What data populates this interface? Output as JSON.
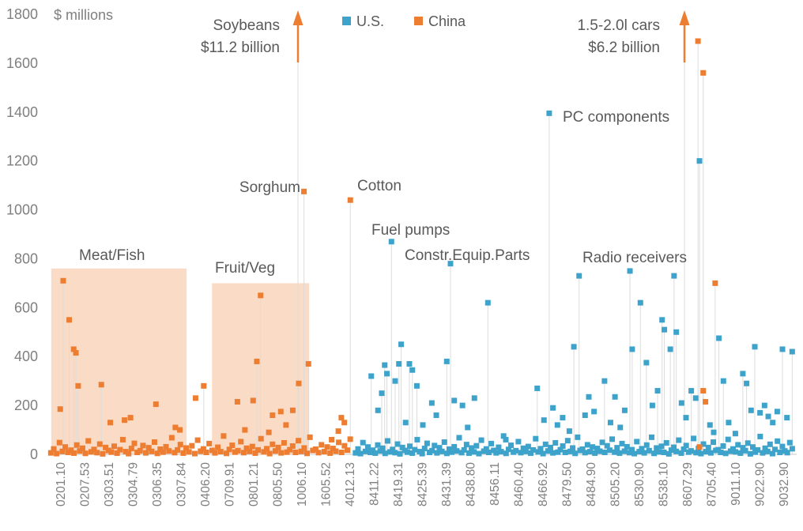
{
  "annotations": {
    "soybeans_line1": "Soybeans",
    "soybeans_line2": "$11.2 billion",
    "cars_line1": "1.5-2.0l cars",
    "cars_line2": "$6.2 billion",
    "sorghum": "Sorghum",
    "cotton": "Cotton",
    "fuel_pumps": "Fuel pumps",
    "constr_equip": "Constr.Equip.Parts",
    "pc_components": "PC components",
    "radio_receivers": "Radio receivers",
    "meat_fish": "Meat/Fish",
    "fruit_veg": "Fruit/Veg"
  },
  "chart_data": {
    "type": "scatter",
    "title": "",
    "ylabel": "$ millions",
    "ylim": [
      0,
      1800
    ],
    "ytick_step": 200,
    "legend_position": "top-center",
    "grid": false,
    "x_tick_labels": [
      "0201.10",
      "0207.53",
      "0303.51",
      "0304.79",
      "0306.35",
      "0307.84",
      "0406.20",
      "0709.91",
      "0801.21",
      "0805.50",
      "1006.10",
      "1605.52",
      "4012.13",
      "8411.22",
      "8419.31",
      "8425.39",
      "8431.39",
      "8438.80",
      "8456.11",
      "8460.40",
      "8466.92",
      "8479.50",
      "8484.90",
      "8505.20",
      "8530.90",
      "8538.10",
      "8607.29",
      "8705.40",
      "9011.10",
      "9022.90",
      "9032.90"
    ],
    "colors": {
      "us": "#3DA3CB",
      "china": "#ED7D31",
      "stem": "#DCDCDC",
      "region_fill": "rgba(237,125,49,0.28)",
      "tick_text": "#7F7F7F",
      "annotation_text": "#595959"
    },
    "regions": [
      {
        "label": "Meat/Fish",
        "x0": 0.3,
        "x1": 18.4,
        "ymax": 760
      },
      {
        "label": "Fruit/Veg",
        "x0": 21.8,
        "x1": 34.8,
        "ymax": 700
      }
    ],
    "offscale": [
      {
        "series": "China",
        "label": "Soybeans",
        "value_label": "$11.2 billion",
        "x": 33.3
      },
      {
        "series": "China",
        "label": "1.5-2.0l cars",
        "value_label": "$6.2 billion",
        "x": 85.0
      }
    ],
    "series": [
      {
        "name": "U.S.",
        "color_key": "us",
        "points": [
          [
            43.1,
            320
          ],
          [
            44,
            180
          ],
          [
            44.5,
            250
          ],
          [
            44.9,
            365
          ],
          [
            45.2,
            330
          ],
          [
            45.8,
            870
          ],
          [
            46.3,
            300
          ],
          [
            46.8,
            370
          ],
          [
            47.1,
            450
          ],
          [
            47.7,
            130
          ],
          [
            48.2,
            370
          ],
          [
            48.6,
            345
          ],
          [
            49.2,
            280
          ],
          [
            50,
            120
          ],
          [
            51.2,
            210
          ],
          [
            51.8,
            160
          ],
          [
            53.2,
            380
          ],
          [
            53.7,
            780
          ],
          [
            54.2,
            220
          ],
          [
            55.3,
            200
          ],
          [
            56,
            110
          ],
          [
            56.9,
            230
          ],
          [
            58.7,
            620
          ],
          [
            61.1,
            60
          ],
          [
            65.3,
            270
          ],
          [
            66.2,
            140
          ],
          [
            66.9,
            1395
          ],
          [
            67.4,
            190
          ],
          [
            68,
            120
          ],
          [
            68.7,
            150
          ],
          [
            69.6,
            95
          ],
          [
            70.2,
            440
          ],
          [
            70.9,
            730
          ],
          [
            71.7,
            160
          ],
          [
            72.2,
            235
          ],
          [
            72.9,
            175
          ],
          [
            74.3,
            300
          ],
          [
            75.1,
            130
          ],
          [
            75.7,
            235
          ],
          [
            76.4,
            110
          ],
          [
            77,
            180
          ],
          [
            77.7,
            750
          ],
          [
            78,
            430
          ],
          [
            79.1,
            620
          ],
          [
            79.9,
            375
          ],
          [
            80.7,
            200
          ],
          [
            81.4,
            260
          ],
          [
            82,
            550
          ],
          [
            82.3,
            510
          ],
          [
            83.1,
            430
          ],
          [
            83.6,
            730
          ],
          [
            83.9,
            500
          ],
          [
            84.6,
            210
          ],
          [
            85.2,
            150
          ],
          [
            85.9,
            260
          ],
          [
            86.5,
            230
          ],
          [
            87,
            1200
          ],
          [
            88.4,
            120
          ],
          [
            88.9,
            90
          ],
          [
            89.6,
            475
          ],
          [
            90.2,
            300
          ],
          [
            90.9,
            130
          ],
          [
            91.8,
            85
          ],
          [
            92.8,
            330
          ],
          [
            93.3,
            290
          ],
          [
            93.9,
            180
          ],
          [
            94.4,
            440
          ],
          [
            95.1,
            170
          ],
          [
            95.7,
            200
          ],
          [
            96.2,
            155
          ],
          [
            96.8,
            130
          ],
          [
            97.4,
            175
          ],
          [
            98.1,
            430
          ],
          [
            98.7,
            150
          ],
          [
            99.4,
            420
          ]
        ],
        "baseline": {
          "x_start": 41.0,
          "x_step": 0.33,
          "values": [
            6,
            22,
            3,
            48,
            12,
            30,
            8,
            17,
            5,
            38,
            14,
            25,
            4,
            55,
            10,
            20,
            7,
            42,
            2,
            28,
            16,
            9,
            33,
            5,
            19,
            60,
            11,
            3,
            24,
            45,
            8,
            15,
            36,
            6,
            27,
            12,
            50,
            4,
            21,
            9,
            31,
            14,
            68,
            7,
            18,
            40,
            5,
            26,
            10,
            35,
            3,
            58,
            13,
            22,
            8,
            44,
            16,
            6,
            29,
            11,
            75,
            4,
            20,
            37,
            9,
            15,
            52,
            7,
            25,
            12,
            32,
            5,
            18,
            64,
            10,
            23,
            3,
            41,
            14,
            28,
            6,
            47,
            9,
            19,
            34,
            8,
            56,
            12,
            26,
            4,
            70,
            16,
            21,
            7,
            39,
            11,
            30,
            5,
            24,
            13,
            49,
            8,
            35,
            17,
            62,
            9,
            27,
            5,
            44,
            13,
            31,
            7,
            19,
            3,
            52,
            11,
            23,
            6,
            38,
            15,
            70,
            4,
            26,
            10,
            33,
            8,
            47,
            2,
            17,
            29,
            12,
            58,
            5,
            21,
            36,
            9,
            14,
            65,
            7,
            24,
            3,
            42,
            11,
            28,
            6,
            50,
            16,
            19,
            8,
            34,
            4,
            61,
            13,
            22,
            10,
            39,
            5,
            27,
            15,
            46,
            2,
            30,
            9,
            18,
            73,
            6,
            25,
            12,
            41,
            3,
            20,
            54,
            8,
            32,
            14,
            7,
            48,
            23
          ]
        }
      },
      {
        "name": "China",
        "color_key": "china",
        "points": [
          [
            1.5,
            185
          ],
          [
            1.9,
            710
          ],
          [
            2.7,
            550
          ],
          [
            3.3,
            430
          ],
          [
            3.6,
            415
          ],
          [
            3.9,
            280
          ],
          [
            7,
            285
          ],
          [
            8.2,
            130
          ],
          [
            10.1,
            140
          ],
          [
            10.9,
            150
          ],
          [
            14.3,
            205
          ],
          [
            16.9,
            110
          ],
          [
            17.5,
            100
          ],
          [
            19.6,
            230
          ],
          [
            20.7,
            280
          ],
          [
            25.2,
            215
          ],
          [
            26.2,
            100
          ],
          [
            27.3,
            220
          ],
          [
            27.8,
            380
          ],
          [
            28.3,
            650
          ],
          [
            29.4,
            90
          ],
          [
            29.9,
            160
          ],
          [
            31,
            175
          ],
          [
            31.7,
            120
          ],
          [
            32.6,
            180
          ],
          [
            33.4,
            290
          ],
          [
            34.1,
            1075
          ],
          [
            34.7,
            370
          ],
          [
            37.8,
            60
          ],
          [
            38.7,
            95
          ],
          [
            39.1,
            150
          ],
          [
            39.5,
            130
          ],
          [
            40.3,
            1040
          ],
          [
            86.8,
            1690
          ],
          [
            87.5,
            1560
          ],
          [
            87.5,
            260
          ],
          [
            87.8,
            215
          ],
          [
            87,
            30
          ],
          [
            89.1,
            700
          ]
        ],
        "baseline": {
          "x_start": 0.25,
          "x_step": 0.385,
          "values": [
            6,
            22,
            3,
            48,
            12,
            30,
            8,
            17,
            5,
            38,
            14,
            25,
            4,
            55,
            10,
            20,
            7,
            42,
            2,
            28,
            16,
            9,
            33,
            5,
            19,
            60,
            11,
            3,
            24,
            45,
            8,
            15,
            36,
            6,
            27,
            12,
            50,
            4,
            21,
            9,
            31,
            14,
            68,
            7,
            18,
            40,
            5,
            26,
            10,
            35,
            3,
            58,
            13,
            22,
            8,
            44,
            16,
            6,
            29,
            11,
            75,
            4,
            20,
            37,
            9,
            15,
            52,
            7,
            25,
            12,
            32,
            5,
            18,
            64,
            10,
            23,
            3,
            41,
            14,
            28,
            6,
            47,
            9,
            19,
            34,
            8,
            56,
            12,
            26,
            4,
            70,
            16,
            21,
            7,
            39,
            11,
            30,
            5,
            24,
            13,
            49,
            8,
            35,
            17,
            62
          ]
        }
      }
    ]
  }
}
